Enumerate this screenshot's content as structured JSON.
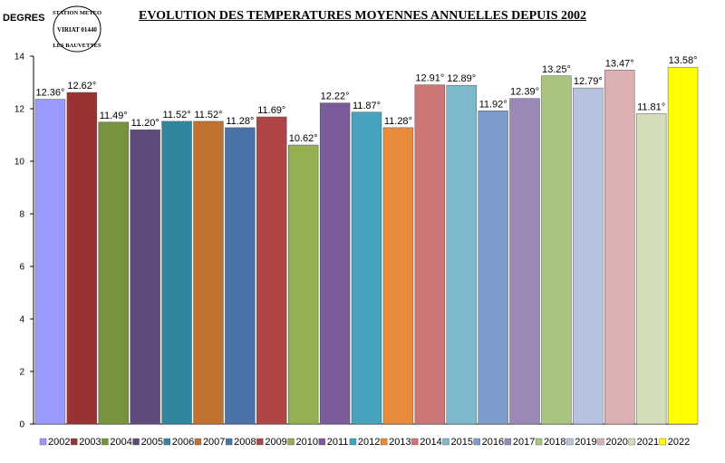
{
  "title": "EVOLUTION DES TEMPERATURES MOYENNES ANNUELLES DEPUIS 2002",
  "stamp_text": [
    "STATION METEO",
    "VIRIAT 01440",
    "LES BAUVETTES"
  ],
  "chart_data": {
    "type": "bar",
    "title": "EVOLUTION DES TEMPERATURES MOYENNES ANNUELLES DEPUIS 2002",
    "xlabel": "",
    "ylabel": "DEGRES",
    "ylim": [
      0,
      14
    ],
    "yticks": [
      0,
      2,
      4,
      6,
      8,
      10,
      12,
      14
    ],
    "grid": false,
    "legend_position": "bottom",
    "categories": [
      "2002",
      "2003",
      "2004",
      "2005",
      "2006",
      "2007",
      "2008",
      "2009",
      "2010",
      "2011",
      "2012",
      "2013",
      "2014",
      "2015",
      "2016",
      "2017",
      "2018",
      "2019",
      "2020",
      "2021",
      "2022"
    ],
    "values": [
      12.36,
      12.62,
      11.49,
      11.2,
      11.52,
      11.52,
      11.28,
      11.69,
      10.62,
      12.22,
      11.87,
      11.28,
      12.91,
      12.89,
      11.92,
      12.39,
      13.25,
      12.79,
      13.47,
      11.81,
      13.58
    ],
    "data_labels": [
      "12.36°",
      "12.62°",
      "11.49°",
      "11.20°",
      "11.52°",
      "11.52°",
      "11.28°",
      "11.69°",
      "10.62°",
      "12.22°",
      "11.87°",
      "11.28°",
      "12.91°",
      "12.89°",
      "11.92°",
      "12.39°",
      "13.25°",
      "12.79°",
      "13.47°",
      "11.81°",
      "13.58°"
    ],
    "colors": [
      "#9999ff",
      "#993333",
      "#77933c",
      "#604a7b",
      "#31859c",
      "#c0702f",
      "#4a72aa",
      "#b04545",
      "#93b150",
      "#7a5c9b",
      "#46a2bd",
      "#e88c3c",
      "#cc7777",
      "#7dbacd",
      "#7d9ccb",
      "#9c88b6",
      "#a9c47e",
      "#b7c3de",
      "#dcb0b0",
      "#d1deb9",
      "#ffff00"
    ]
  }
}
